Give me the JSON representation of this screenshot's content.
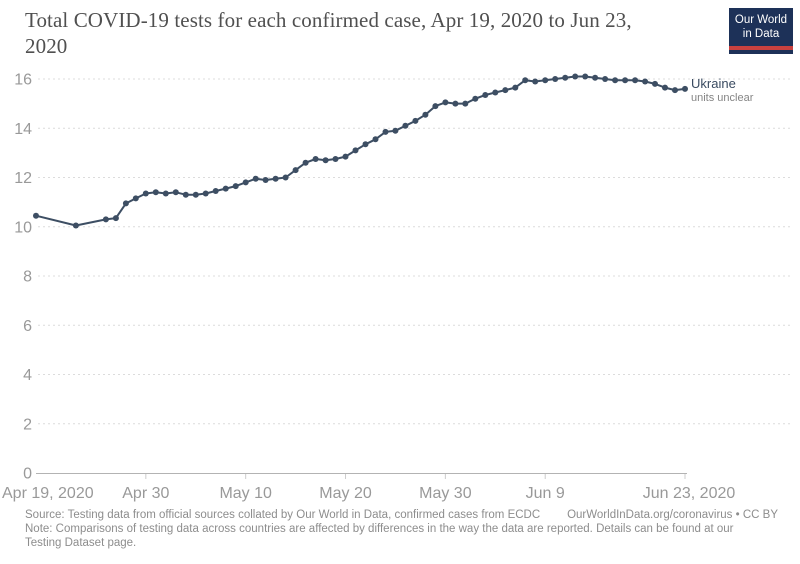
{
  "header": {
    "title": "Total COVID-19 tests for each confirmed case, Apr 19, 2020 to Jun 23, 2020",
    "title_lines": [
      "Total COVID-19 tests for each confirmed case, Apr 19, 2020 to Jun 23,",
      "2020"
    ],
    "logo": {
      "line1": "Our World",
      "line2": "in Data"
    }
  },
  "footer": {
    "source_left": "Source: Testing data from official sources collated by Our World in Data, confirmed cases from ECDC",
    "source_right": "OurWorldInData.org/coronavirus • CC BY",
    "note_line1": "Note: Comparisons of testing data across countries are affected by differences in the way the data are reported. Details can be found at our",
    "note_line2": "Testing Dataset page."
  },
  "colors": {
    "series": "#3d4e63",
    "axis_label": "#999999",
    "gridline": "#dcdcdc",
    "zero_line": "#b3b3b3",
    "tick": "#cccccc",
    "series_label": "#3a4b61",
    "annotation": "#848484",
    "logo_bg": "#1d3158",
    "logo_red": "#c9413f",
    "title": "#505050",
    "footer": "#8d8d8d"
  },
  "chart_data": {
    "type": "line",
    "title": "Total COVID-19 tests for each confirmed case, Apr 19, 2020 to Jun 23, 2020",
    "xlabel": "",
    "ylabel": "",
    "ylim": [
      0,
      16
    ],
    "yticks": [
      0,
      2,
      4,
      6,
      8,
      10,
      12,
      14,
      16
    ],
    "xlim_days": [
      0,
      65
    ],
    "grid": "horizontal-dashed",
    "legend_position": "end-of-line",
    "xticks": [
      {
        "label": "Apr 19, 2020",
        "day": 0,
        "anchor": "start",
        "tick": false
      },
      {
        "label": "Apr 30",
        "day": 11,
        "anchor": "middle",
        "tick": true
      },
      {
        "label": "May 10",
        "day": 21,
        "anchor": "middle",
        "tick": true
      },
      {
        "label": "May 20",
        "day": 31,
        "anchor": "middle",
        "tick": true
      },
      {
        "label": "May 30",
        "day": 41,
        "anchor": "middle",
        "tick": true
      },
      {
        "label": "Jun 9",
        "day": 51,
        "anchor": "middle",
        "tick": true
      },
      {
        "label": "Jun 23, 2020",
        "day": 65,
        "anchor": "middle",
        "tick": true
      }
    ],
    "series": [
      {
        "name": "Ukraine",
        "annotation": "units unclear",
        "color": "#3d4e63",
        "points": [
          {
            "date": "Apr 19",
            "day": 0,
            "value": 10.45
          },
          {
            "date": "Apr 23",
            "day": 4,
            "value": 10.05
          },
          {
            "date": "Apr 26",
            "day": 7,
            "value": 10.3
          },
          {
            "date": "Apr 27",
            "day": 8,
            "value": 10.35
          },
          {
            "date": "Apr 28",
            "day": 9,
            "value": 10.95
          },
          {
            "date": "Apr 29",
            "day": 10,
            "value": 11.15
          },
          {
            "date": "Apr 30",
            "day": 11,
            "value": 11.35
          },
          {
            "date": "May 1",
            "day": 12,
            "value": 11.4
          },
          {
            "date": "May 2",
            "day": 13,
            "value": 11.35
          },
          {
            "date": "May 3",
            "day": 14,
            "value": 11.4
          },
          {
            "date": "May 4",
            "day": 15,
            "value": 11.3
          },
          {
            "date": "May 5",
            "day": 16,
            "value": 11.3
          },
          {
            "date": "May 6",
            "day": 17,
            "value": 11.35
          },
          {
            "date": "May 7",
            "day": 18,
            "value": 11.45
          },
          {
            "date": "May 8",
            "day": 19,
            "value": 11.55
          },
          {
            "date": "May 9",
            "day": 20,
            "value": 11.65
          },
          {
            "date": "May 10",
            "day": 21,
            "value": 11.8
          },
          {
            "date": "May 11",
            "day": 22,
            "value": 11.95
          },
          {
            "date": "May 12",
            "day": 23,
            "value": 11.9
          },
          {
            "date": "May 13",
            "day": 24,
            "value": 11.95
          },
          {
            "date": "May 14",
            "day": 25,
            "value": 12.0
          },
          {
            "date": "May 15",
            "day": 26,
            "value": 12.3
          },
          {
            "date": "May 16",
            "day": 27,
            "value": 12.6
          },
          {
            "date": "May 17",
            "day": 28,
            "value": 12.75
          },
          {
            "date": "May 18",
            "day": 29,
            "value": 12.7
          },
          {
            "date": "May 19",
            "day": 30,
            "value": 12.75
          },
          {
            "date": "May 20",
            "day": 31,
            "value": 12.85
          },
          {
            "date": "May 21",
            "day": 32,
            "value": 13.1
          },
          {
            "date": "May 22",
            "day": 33,
            "value": 13.35
          },
          {
            "date": "May 23",
            "day": 34,
            "value": 13.55
          },
          {
            "date": "May 24",
            "day": 35,
            "value": 13.85
          },
          {
            "date": "May 25",
            "day": 36,
            "value": 13.9
          },
          {
            "date": "May 26",
            "day": 37,
            "value": 14.1
          },
          {
            "date": "May 27",
            "day": 38,
            "value": 14.3
          },
          {
            "date": "May 28",
            "day": 39,
            "value": 14.55
          },
          {
            "date": "May 29",
            "day": 40,
            "value": 14.9
          },
          {
            "date": "May 30",
            "day": 41,
            "value": 15.05
          },
          {
            "date": "May 31",
            "day": 42,
            "value": 15.0
          },
          {
            "date": "Jun 1",
            "day": 43,
            "value": 15.0
          },
          {
            "date": "Jun 2",
            "day": 44,
            "value": 15.2
          },
          {
            "date": "Jun 3",
            "day": 45,
            "value": 15.35
          },
          {
            "date": "Jun 4",
            "day": 46,
            "value": 15.45
          },
          {
            "date": "Jun 5",
            "day": 47,
            "value": 15.55
          },
          {
            "date": "Jun 6",
            "day": 48,
            "value": 15.65
          },
          {
            "date": "Jun 7",
            "day": 49,
            "value": 15.95
          },
          {
            "date": "Jun 8",
            "day": 50,
            "value": 15.9
          },
          {
            "date": "Jun 9",
            "day": 51,
            "value": 15.95
          },
          {
            "date": "Jun 10",
            "day": 52,
            "value": 16.0
          },
          {
            "date": "Jun 11",
            "day": 53,
            "value": 16.05
          },
          {
            "date": "Jun 12",
            "day": 54,
            "value": 16.1
          },
          {
            "date": "Jun 13",
            "day": 55,
            "value": 16.1
          },
          {
            "date": "Jun 14",
            "day": 56,
            "value": 16.05
          },
          {
            "date": "Jun 15",
            "day": 57,
            "value": 16.0
          },
          {
            "date": "Jun 16",
            "day": 58,
            "value": 15.95
          },
          {
            "date": "Jun 17",
            "day": 59,
            "value": 15.95
          },
          {
            "date": "Jun 18",
            "day": 60,
            "value": 15.95
          },
          {
            "date": "Jun 19",
            "day": 61,
            "value": 15.9
          },
          {
            "date": "Jun 20",
            "day": 62,
            "value": 15.8
          },
          {
            "date": "Jun 21",
            "day": 63,
            "value": 15.65
          },
          {
            "date": "Jun 22",
            "day": 64,
            "value": 15.55
          },
          {
            "date": "Jun 23",
            "day": 65,
            "value": 15.6
          }
        ]
      }
    ]
  }
}
